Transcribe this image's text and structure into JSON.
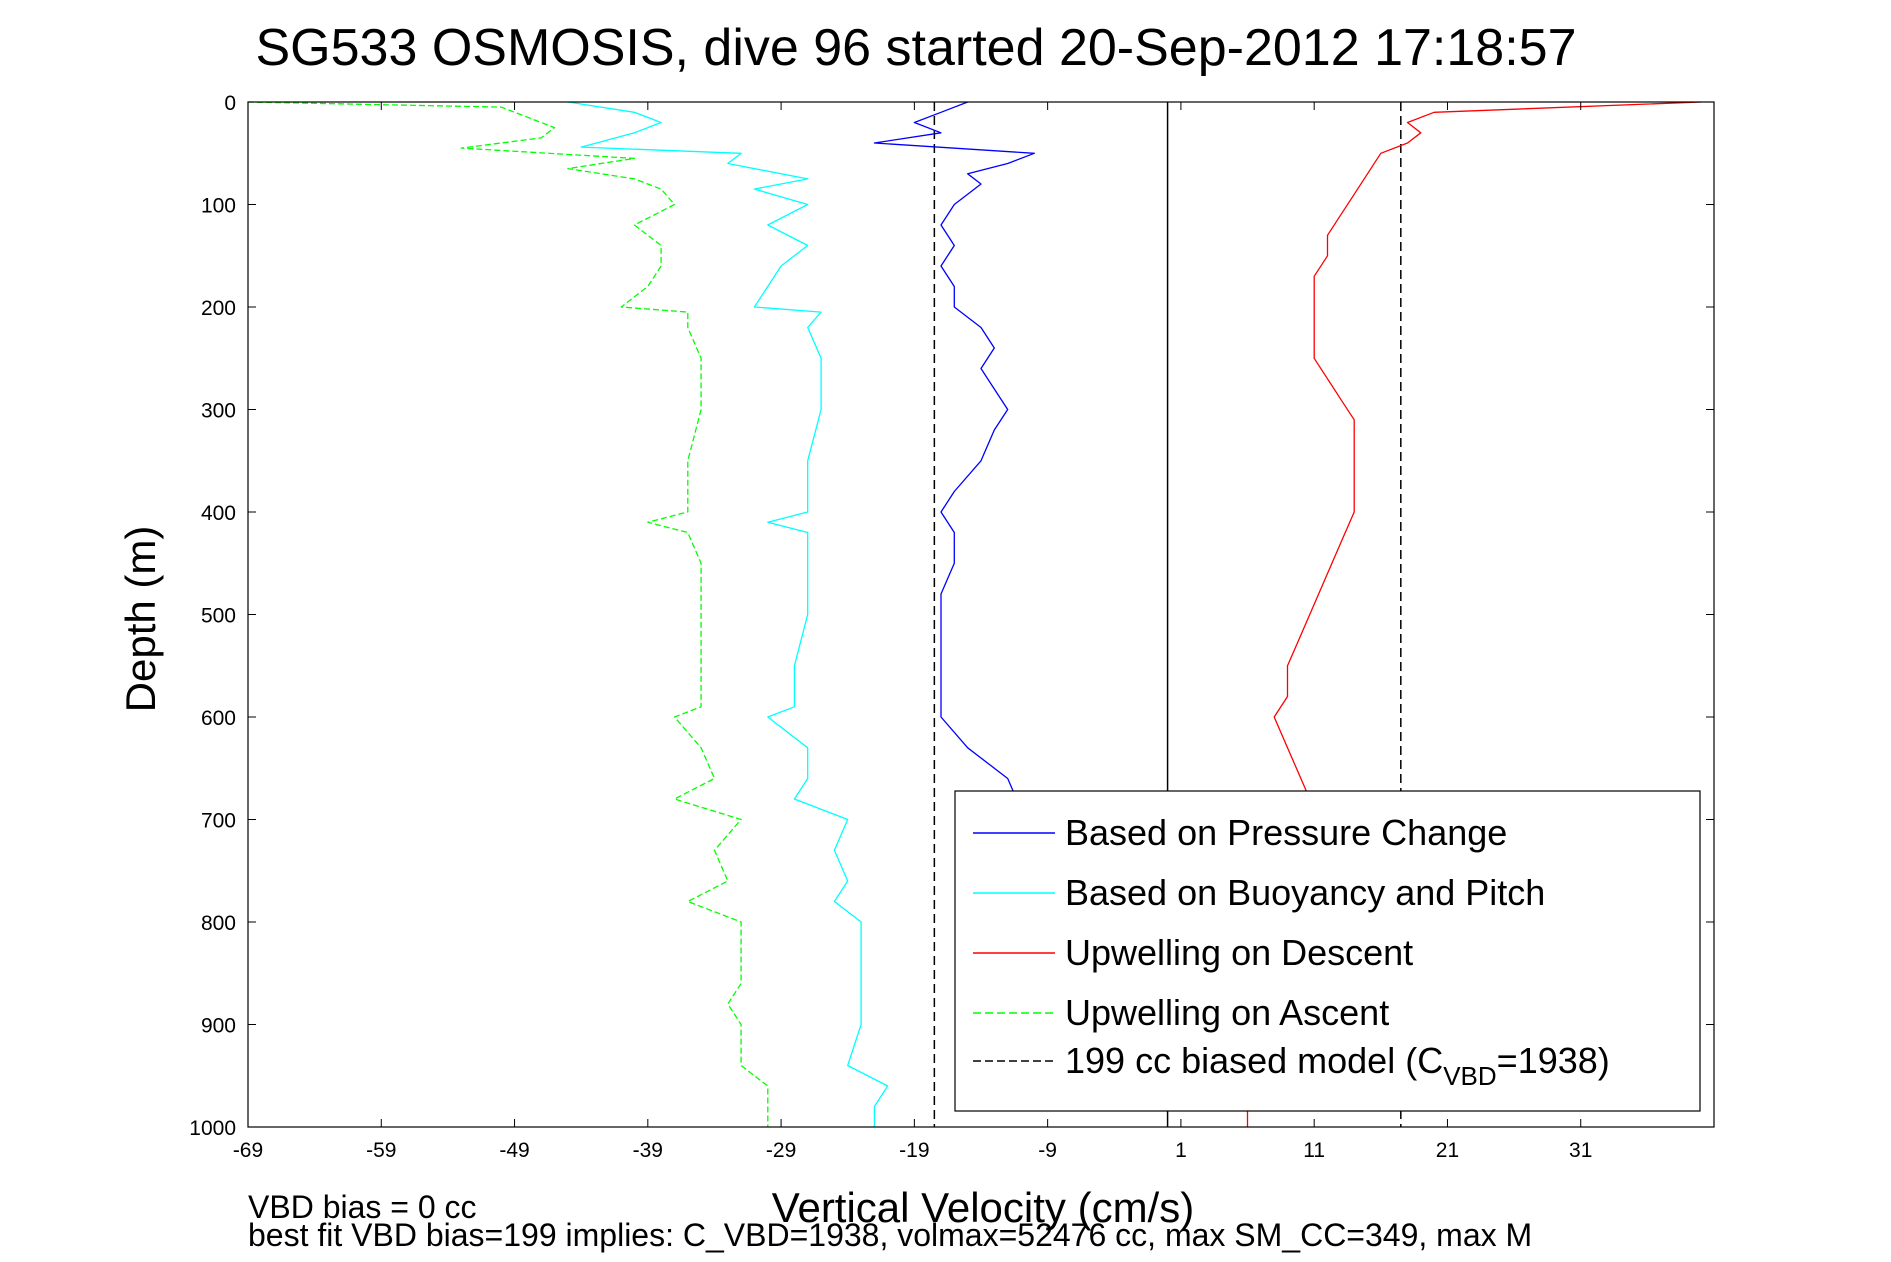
{
  "chart_data": {
    "type": "line",
    "title": "SG533 OSMOSIS, dive 96 started 20-Sep-2012 17:18:57",
    "xlabel": "Vertical Velocity (cm/s)",
    "ylabel": "Depth (m)",
    "xlim": [
      -69,
      41
    ],
    "ylim": [
      0,
      1000
    ],
    "y_reversed": true,
    "xticks": [
      -69,
      -59,
      -49,
      -39,
      -29,
      -19,
      -9,
      1,
      11,
      21,
      31
    ],
    "yticks": [
      0,
      100,
      200,
      300,
      400,
      500,
      600,
      700,
      800,
      900,
      1000
    ],
    "grid": true,
    "legend_position": "bottom-right",
    "series": [
      {
        "name": "Based on Pressure Change",
        "color": "#0000ff",
        "style": "solid",
        "depth": [
          0,
          10,
          20,
          30,
          40,
          50,
          60,
          70,
          80,
          100,
          120,
          140,
          160,
          180,
          200,
          220,
          240,
          260,
          280,
          300,
          320,
          350,
          380,
          400,
          420,
          450,
          480,
          500,
          530,
          560,
          600,
          630,
          660,
          690
        ],
        "values": [
          -15,
          -17,
          -19,
          -17,
          -22,
          -10,
          -12,
          -15,
          -14,
          -16,
          -17,
          -16,
          -17,
          -16,
          -16,
          -14,
          -13,
          -14,
          -13,
          -12,
          -13,
          -14,
          -16,
          -17,
          -16,
          -16,
          -17,
          -17,
          -17,
          -17,
          -17,
          -15,
          -12,
          -11
        ]
      },
      {
        "name": "Based on Buoyancy and Pitch",
        "color": "#00ffff",
        "style": "solid",
        "depth": [
          0,
          10,
          20,
          30,
          44,
          50,
          60,
          75,
          85,
          100,
          120,
          140,
          160,
          180,
          200,
          205,
          220,
          250,
          300,
          350,
          400,
          410,
          420,
          450,
          500,
          550,
          590,
          600,
          630,
          660,
          680,
          700,
          730,
          760,
          780,
          800,
          830,
          860,
          900,
          940,
          960,
          980,
          1000
        ],
        "values": [
          -45,
          -40,
          -38,
          -40,
          -44,
          -32,
          -33,
          -27,
          -31,
          -27,
          -30,
          -27,
          -29,
          -30,
          -31,
          -26,
          -27,
          -26,
          -26,
          -27,
          -27,
          -30,
          -27,
          -27,
          -27,
          -28,
          -28,
          -30,
          -27,
          -27,
          -28,
          -24,
          -25,
          -24,
          -25,
          -23,
          -23,
          -23,
          -23,
          -24,
          -21,
          -22,
          -22
        ]
      },
      {
        "name": "Upwelling on Descent",
        "color": "#ff0000",
        "style": "solid",
        "depth": [
          0,
          10,
          20,
          30,
          40,
          50,
          70,
          90,
          110,
          130,
          150,
          170,
          190,
          210,
          230,
          250,
          270,
          290,
          310,
          340,
          370,
          400,
          430,
          460,
          490,
          520,
          550,
          580,
          600,
          630,
          660,
          690,
          720,
          750,
          780,
          800,
          830,
          860,
          890,
          920,
          950,
          980,
          1000
        ],
        "values": [
          40,
          20,
          18,
          19,
          18,
          16,
          15,
          14,
          13,
          12,
          12,
          11,
          11,
          11,
          11,
          11,
          12,
          13,
          14,
          14,
          14,
          14,
          13,
          12,
          11,
          10,
          9,
          9,
          8,
          9,
          10,
          11,
          10,
          9,
          10,
          9,
          9,
          8,
          8,
          7,
          7,
          6,
          6
        ]
      },
      {
        "name": "Upwelling on Ascent",
        "color": "#00ff00",
        "style": "dashed",
        "depth": [
          0,
          5,
          15,
          25,
          35,
          45,
          55,
          65,
          75,
          85,
          100,
          120,
          140,
          160,
          180,
          200,
          205,
          220,
          250,
          300,
          350,
          400,
          410,
          420,
          450,
          500,
          550,
          590,
          600,
          630,
          660,
          680,
          700,
          730,
          760,
          780,
          800,
          830,
          860,
          880,
          900,
          940,
          960,
          980,
          1000
        ],
        "values": [
          -69,
          -50,
          -48,
          -46,
          -47,
          -53,
          -40,
          -45,
          -40,
          -38,
          -37,
          -40,
          -38,
          -38,
          -39,
          -41,
          -36,
          -36,
          -35,
          -35,
          -36,
          -36,
          -39,
          -36,
          -35,
          -35,
          -35,
          -35,
          -37,
          -35,
          -34,
          -37,
          -32,
          -34,
          -33,
          -36,
          -32,
          -32,
          -32,
          -33,
          -32,
          -32,
          -30,
          -30,
          -30
        ]
      }
    ],
    "reference_lines": [
      {
        "name": "199 cc biased model (C_VBD=1938)",
        "x": -17.5,
        "color": "#000000",
        "style": "dashed"
      },
      {
        "x": 17.5,
        "color": "#000000",
        "style": "dashed"
      },
      {
        "x": 0,
        "color": "#000000",
        "style": "solid"
      }
    ],
    "legend": {
      "entries": [
        {
          "label": "Based on Pressure Change",
          "color": "#0000ff",
          "style": "solid"
        },
        {
          "label": "Based on Buoyancy and Pitch",
          "color": "#00ffff",
          "style": "solid"
        },
        {
          "label": "Upwelling on Descent",
          "color": "#ff0000",
          "style": "solid"
        },
        {
          "label": "Upwelling on Ascent",
          "color": "#00ff00",
          "style": "dashed"
        },
        {
          "label_prefix": "199 cc biased model (C",
          "label_sub": "VBD",
          "label_suffix": "=1938)",
          "color": "#000000",
          "style": "dashed"
        }
      ]
    },
    "annotations": {
      "line1": "VBD bias = 0 cc",
      "line2": "best fit VBD bias=199 implies: C_VBD=1938, volmax=52476 cc, max SM_CC=349, max M"
    }
  }
}
